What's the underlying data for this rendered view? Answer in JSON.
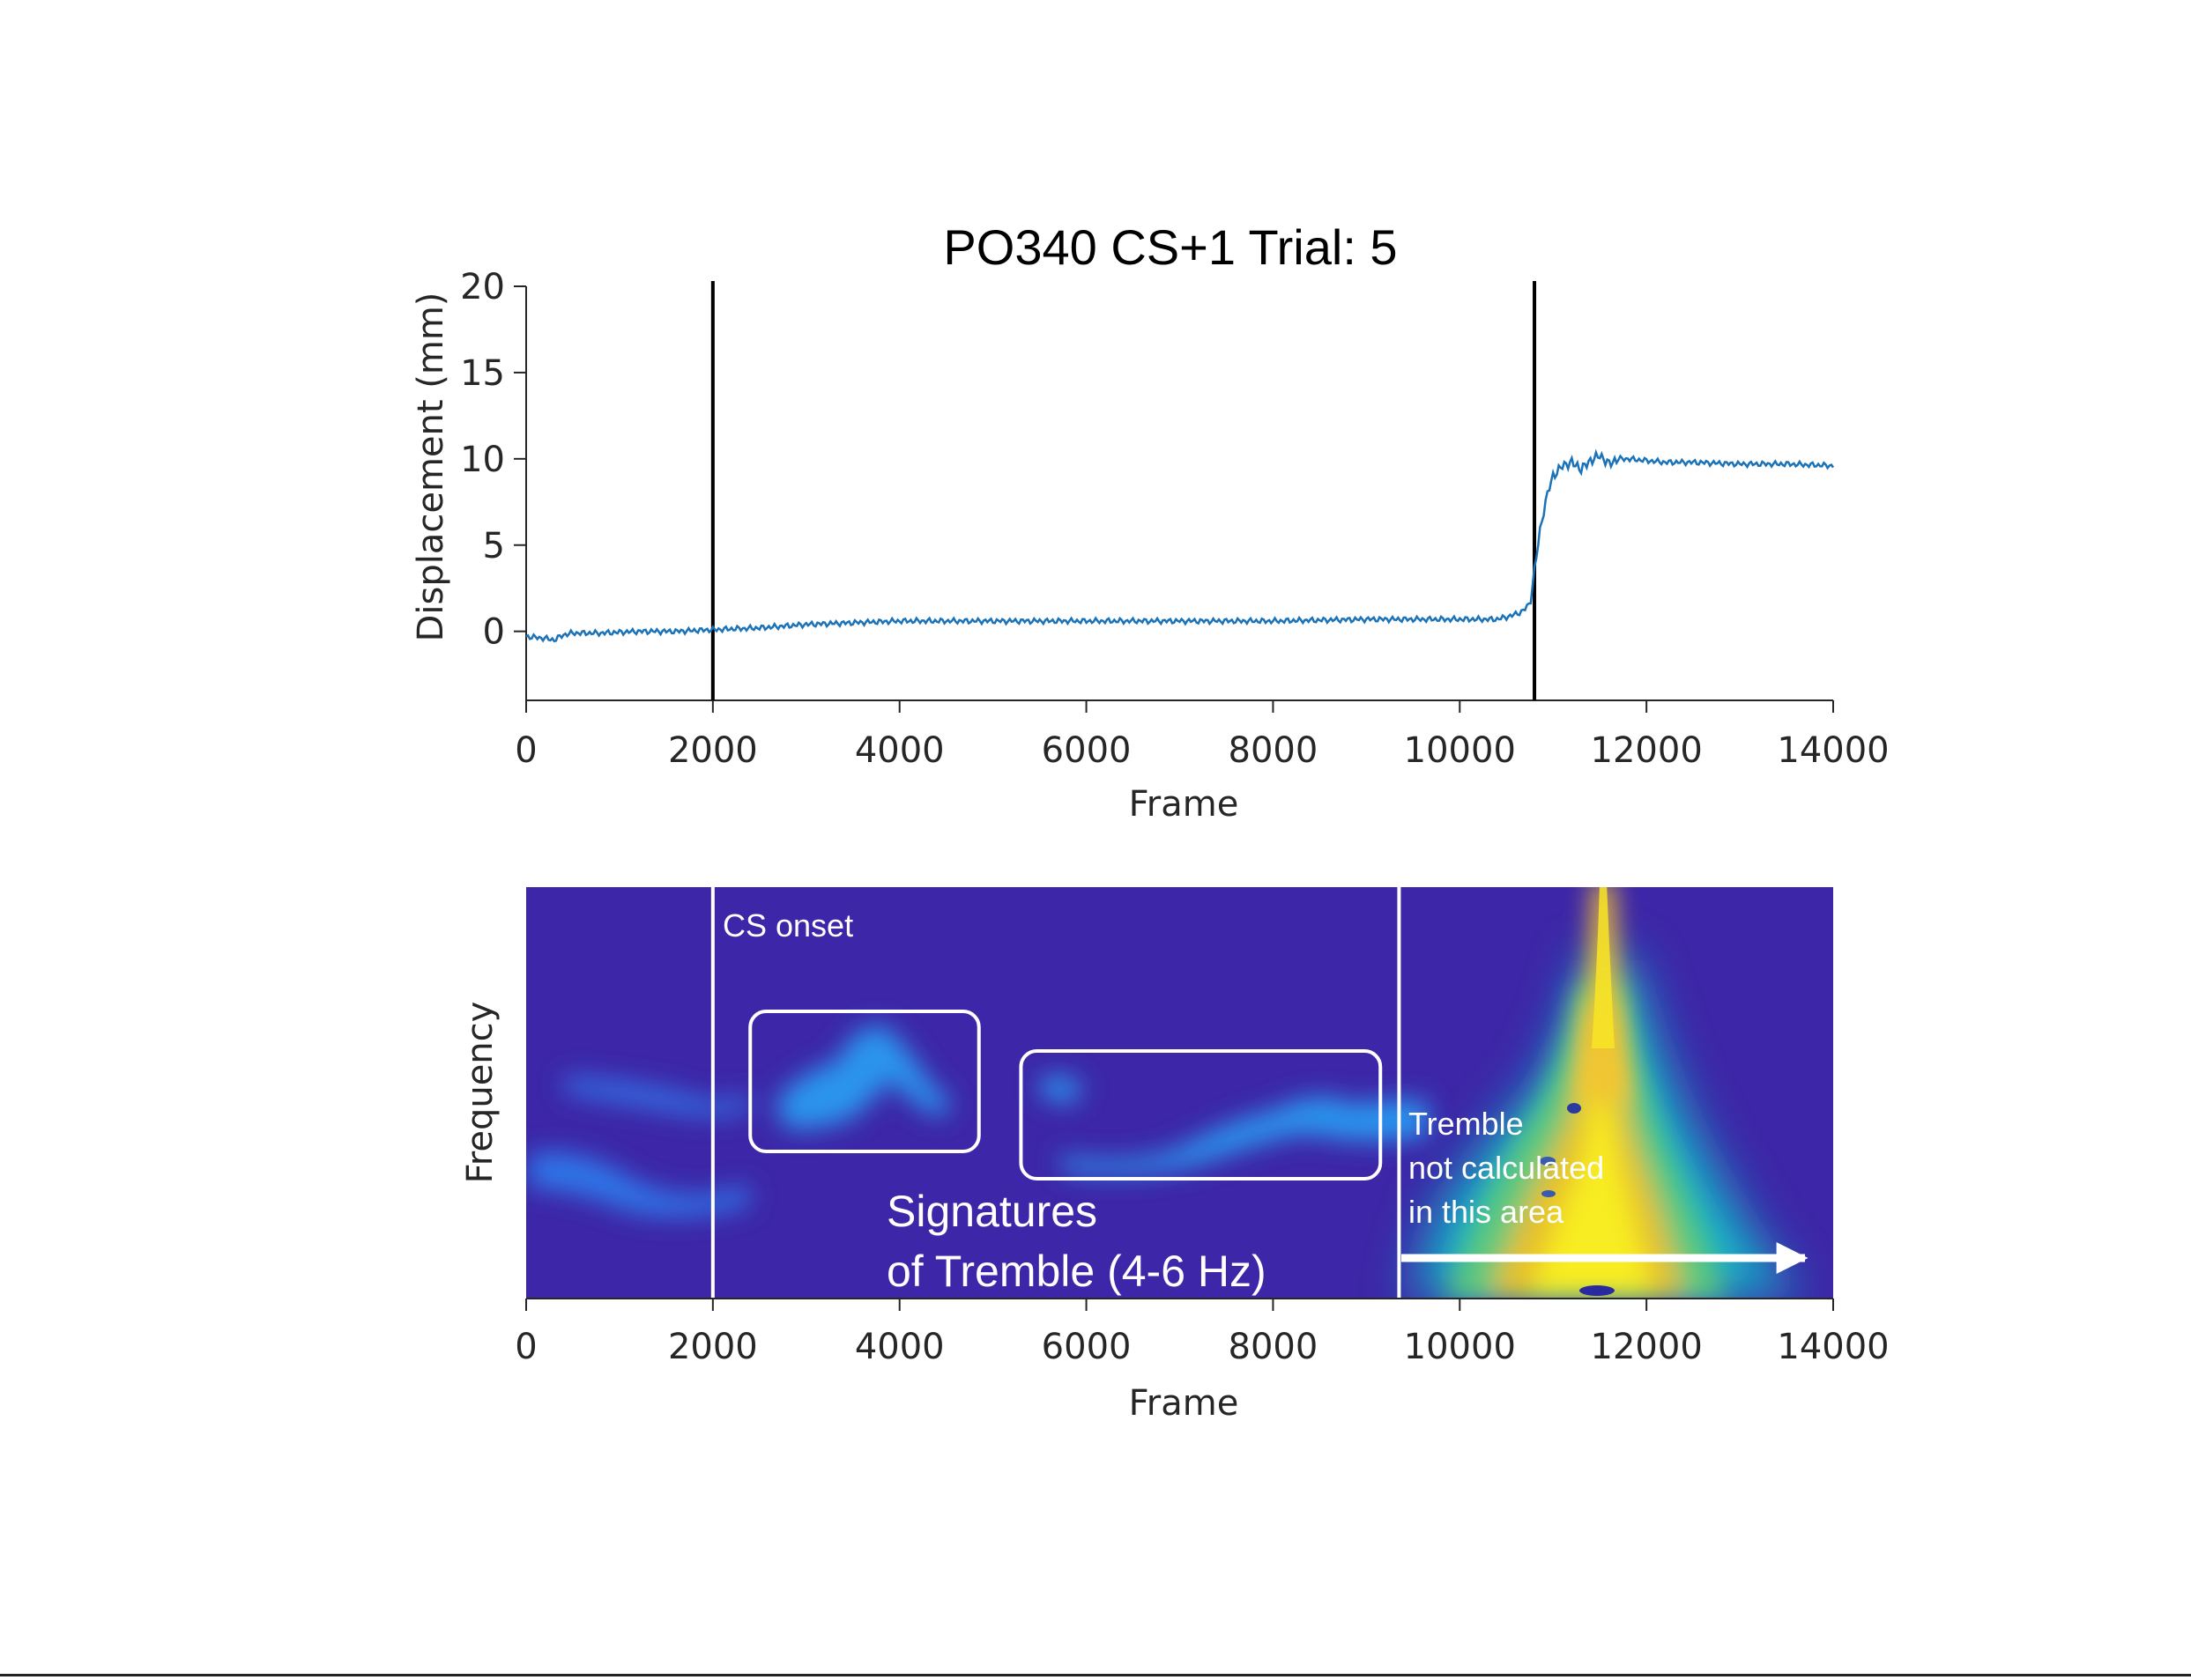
{
  "chart_data": [
    {
      "type": "line",
      "title": "PO340 CS+1 Trial: 5",
      "xlabel": "Frame",
      "ylabel": "Displacement (mm)",
      "xlim": [
        0,
        14000
      ],
      "ylim": [
        -4,
        20
      ],
      "xticks": [
        "0",
        "2000",
        "4000",
        "6000",
        "8000",
        "10000",
        "12000",
        "14000"
      ],
      "yticks": [
        "0",
        "5",
        "10",
        "15",
        "20"
      ],
      "grid": false,
      "line_color": "#1a72b8",
      "vlines": [
        2000,
        10800
      ],
      "series": [
        {
          "x": [
            0,
            200,
            300,
            400,
            500,
            800,
            1200,
            1600,
            2000,
            2500,
            3000,
            3500,
            4000,
            5000,
            6000,
            7000,
            8000,
            9000,
            10000,
            10400,
            10550,
            10650,
            10750,
            10800,
            10850,
            10900,
            10950,
            11000,
            11100,
            11200,
            11300,
            11400,
            11500,
            11600,
            11700,
            11800,
            12000,
            12200,
            12500,
            13000,
            13500,
            14000
          ],
          "y": [
            -0.3,
            -0.4,
            -0.5,
            -0.2,
            -0.1,
            -0.1,
            0.0,
            0.0,
            0.1,
            0.2,
            0.4,
            0.5,
            0.6,
            0.6,
            0.6,
            0.6,
            0.6,
            0.7,
            0.7,
            0.7,
            0.9,
            1.1,
            1.5,
            3.5,
            5.5,
            7.0,
            8.2,
            9.0,
            9.6,
            9.8,
            9.4,
            9.9,
            10.2,
            9.7,
            10.0,
            10.0,
            9.9,
            9.8,
            9.8,
            9.7,
            9.7,
            9.6
          ]
        }
      ]
    },
    {
      "type": "heatmap",
      "xlabel": "Frame",
      "ylabel": "Frequency",
      "xlim": [
        0,
        14000
      ],
      "xticks": [
        "0",
        "2000",
        "4000",
        "6000",
        "8000",
        "10000",
        "12000",
        "14000"
      ],
      "colormap": "parula",
      "background_color": "#3d27a8",
      "vlines": [
        2000,
        9350
      ],
      "annotations": {
        "cs_onset": "CS onset",
        "signature_line1": "Signatures",
        "signature_line2": "of Tremble (4-6 Hz)",
        "tremble_line1": "Tremble",
        "tremble_line2": "not calculated",
        "tremble_line3": "in this area"
      },
      "highlight_boxes_x": [
        [
          2400,
          4850
        ],
        [
          5300,
          9150
        ]
      ]
    }
  ]
}
